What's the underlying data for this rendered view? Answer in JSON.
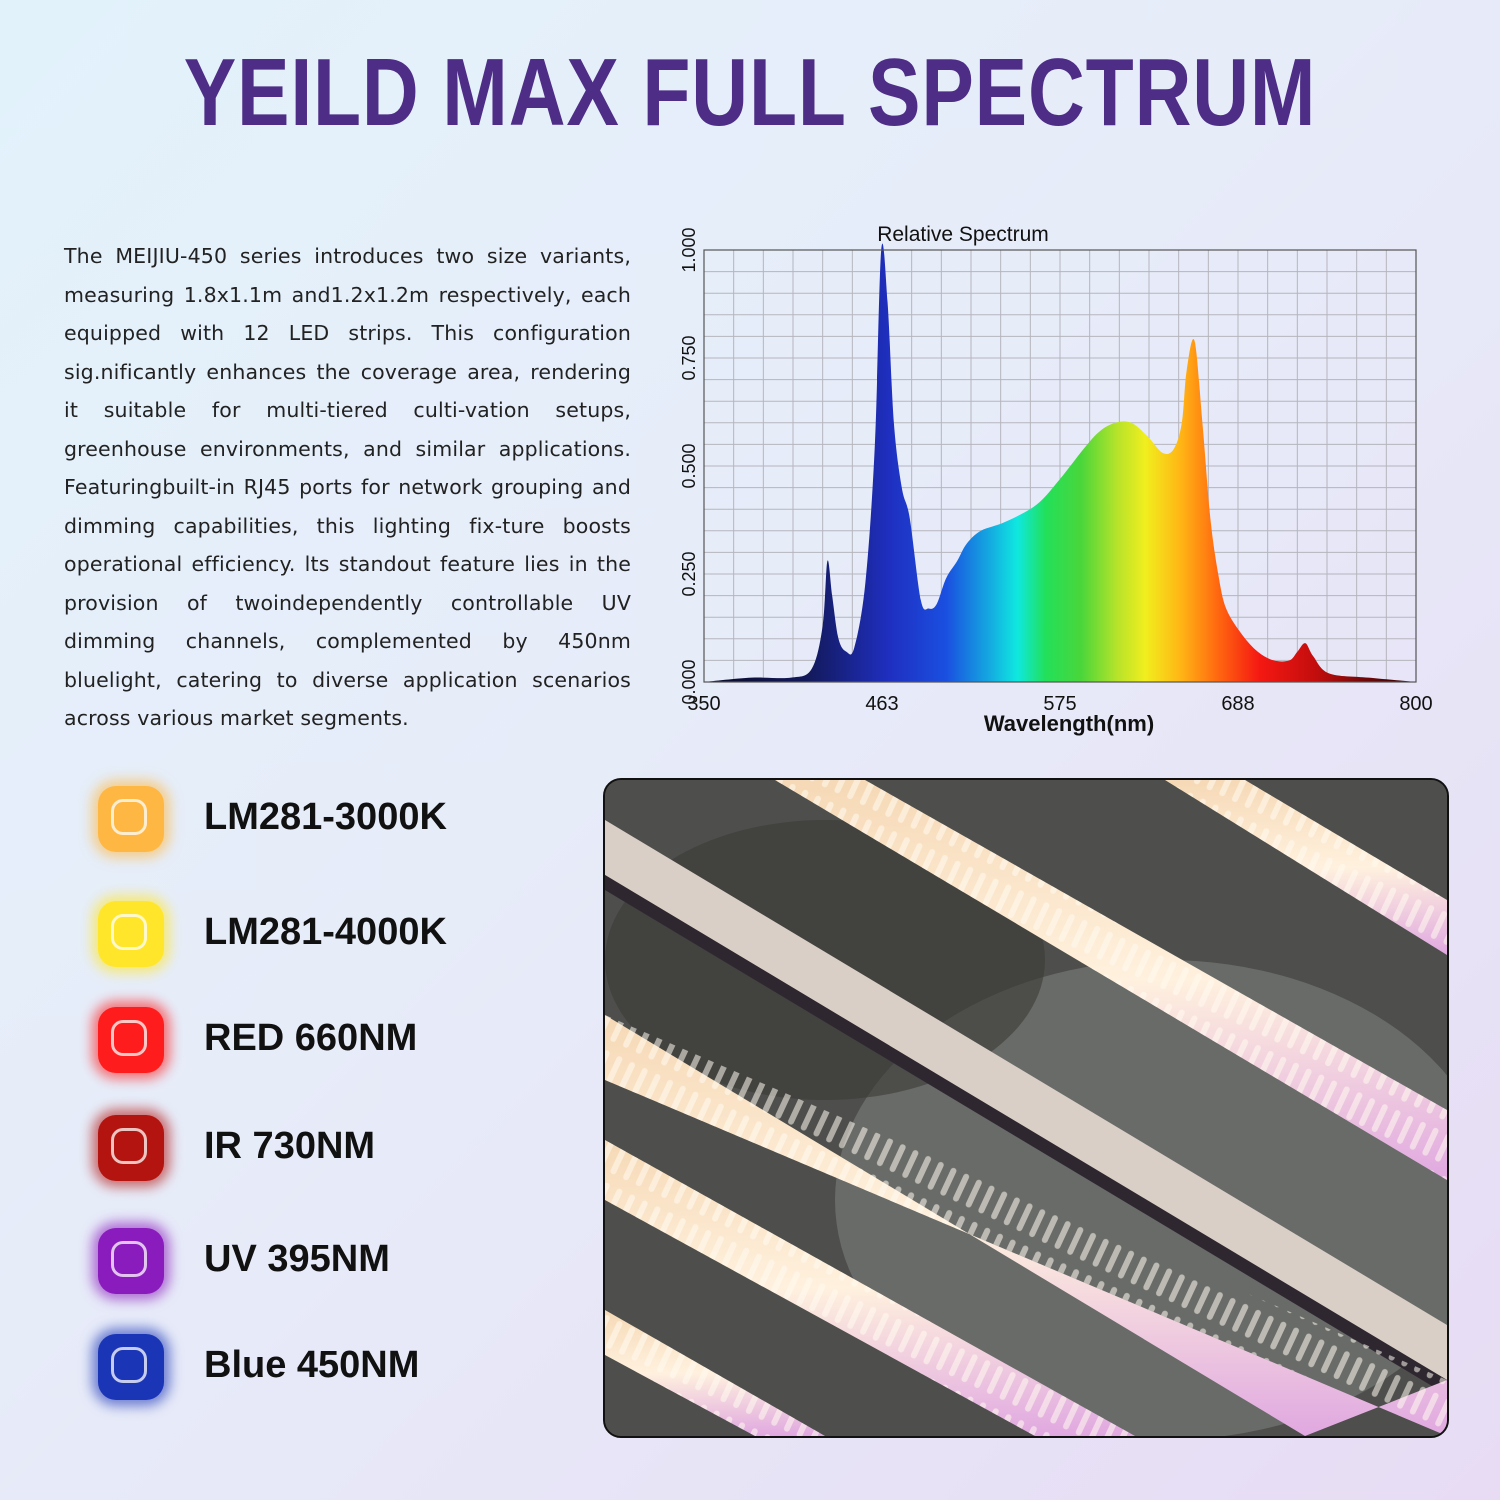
{
  "title": "YEILD MAX FULL SPECTRUM",
  "description": "The MEIJIU-450 series introduces two size variants, measuring 1.8x1.1m and1.2x1.2m respectively, each equipped with 12 LED strips. This configuration sig.nificantly enhances the coverage area, rendering it suitable for multi-tiered culti-vation setups, greenhouse environments, and similar applications. Featuringbuilt-in RJ45 ports for network grouping and dimming capabilities, this lighting fix-ture boosts operational efficiency. lts standout feature lies in the provision of twoindependently controllable UV dimming channels, complemented by 450nm bluelight, catering to diverse application scenarios across various market segments.",
  "chart_data": {
    "type": "area",
    "title": "Relative Spectrum",
    "xlabel": "Wavelength(nm)",
    "ylabel": "",
    "xlim": [
      350,
      800
    ],
    "ylim": [
      0,
      1
    ],
    "x_ticks": [
      "350",
      "463",
      "575",
      "688",
      "800"
    ],
    "y_ticks": [
      "0.000",
      "0.250",
      "0.500",
      "0.750",
      "1.000"
    ],
    "grid": true,
    "x": [
      350,
      380,
      405,
      418,
      425,
      428,
      431,
      435,
      440,
      445,
      452,
      458,
      462,
      466,
      470,
      475,
      480,
      487,
      492,
      497,
      503,
      510,
      516,
      525,
      540,
      560,
      575,
      590,
      600,
      610,
      620,
      630,
      640,
      647,
      652,
      655,
      660,
      665,
      670,
      675,
      680,
      690,
      700,
      710,
      720,
      725,
      730,
      735,
      745,
      770,
      800
    ],
    "y": [
      0.0,
      0.01,
      0.01,
      0.03,
      0.13,
      0.28,
      0.2,
      0.1,
      0.07,
      0.08,
      0.23,
      0.55,
      1.0,
      0.88,
      0.6,
      0.45,
      0.38,
      0.19,
      0.17,
      0.18,
      0.24,
      0.28,
      0.32,
      0.35,
      0.37,
      0.41,
      0.47,
      0.54,
      0.58,
      0.6,
      0.6,
      0.57,
      0.53,
      0.54,
      0.6,
      0.72,
      0.79,
      0.6,
      0.38,
      0.25,
      0.17,
      0.11,
      0.07,
      0.05,
      0.05,
      0.07,
      0.09,
      0.06,
      0.02,
      0.01,
      0.0
    ]
  },
  "legend": [
    {
      "label": "LM281-3000K",
      "color": "#ffb743"
    },
    {
      "label": "LM281-4000K",
      "color": "#ffe62a"
    },
    {
      "label": "RED 660NM",
      "color": "#ff1c1c"
    },
    {
      "label": "IR 730NM",
      "color": "#b3140f"
    },
    {
      "label": "UV 395NM",
      "color": "#8a1bbd"
    },
    {
      "label": "Blue 450NM",
      "color": "#1b35b7"
    }
  ]
}
